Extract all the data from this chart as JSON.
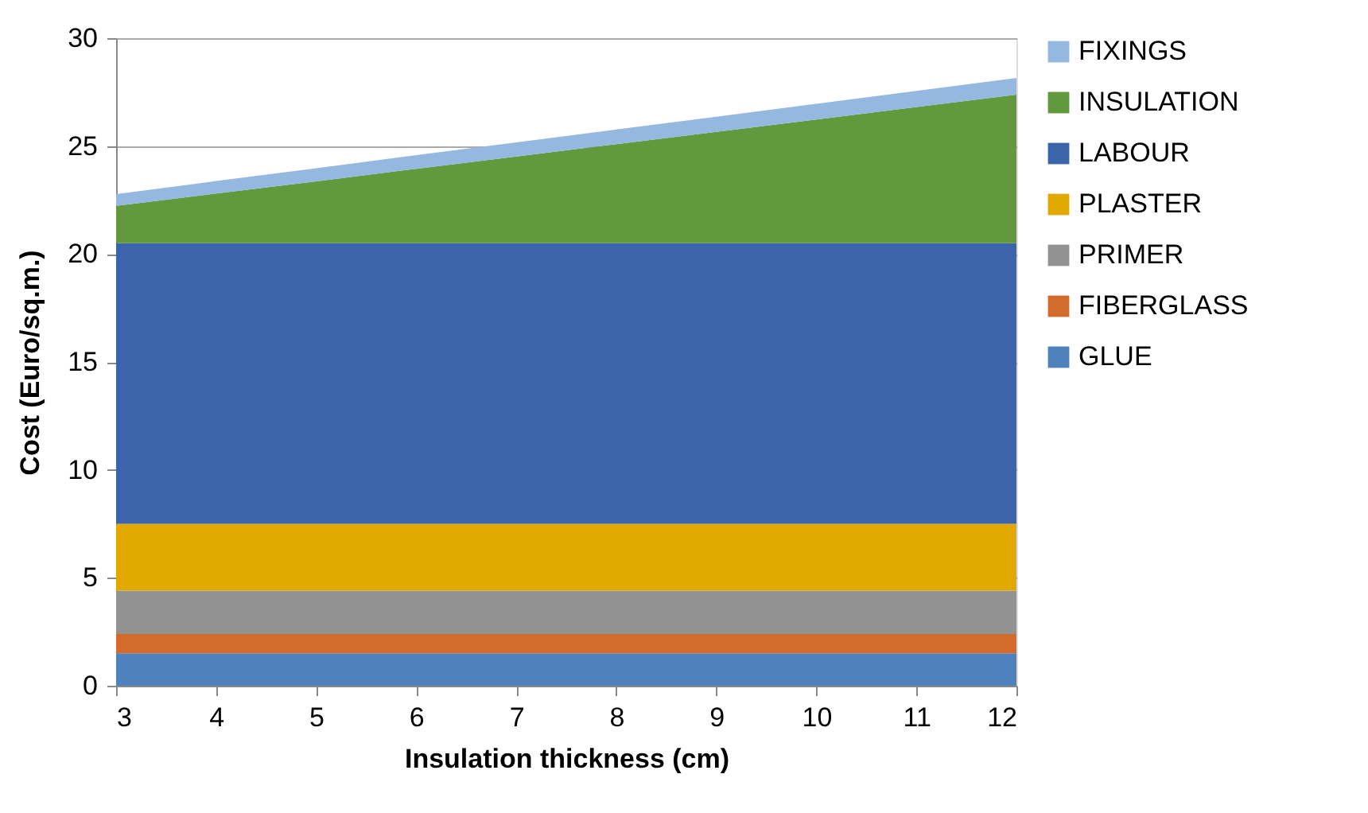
{
  "chart_data": {
    "type": "area",
    "stacked": true,
    "xlabel": "Insulation thickness (cm)",
    "ylabel": "Cost (Euro/sq.m.)",
    "x": [
      3,
      4,
      5,
      6,
      7,
      8,
      9,
      10,
      11,
      12
    ],
    "xlim": [
      3,
      12
    ],
    "xticks": [
      3,
      4,
      5,
      6,
      7,
      8,
      9,
      10,
      11,
      12
    ],
    "ylim": [
      0,
      30
    ],
    "yticks": [
      0,
      5,
      10,
      15,
      20,
      25,
      30
    ],
    "grid": "y",
    "legend": "right",
    "series": [
      {
        "name": "GLUE",
        "color": "#4f81bd",
        "values": [
          1.5,
          1.5,
          1.5,
          1.5,
          1.5,
          1.5,
          1.5,
          1.5,
          1.5,
          1.5
        ]
      },
      {
        "name": "FIBERGLASS",
        "color": "#d26b2b",
        "values": [
          0.9,
          0.9,
          0.9,
          0.9,
          0.9,
          0.9,
          0.9,
          0.9,
          0.9,
          0.9
        ]
      },
      {
        "name": "PRIMER",
        "color": "#929292",
        "values": [
          2.0,
          2.0,
          2.0,
          2.0,
          2.0,
          2.0,
          2.0,
          2.0,
          2.0,
          2.0
        ]
      },
      {
        "name": "PLASTER",
        "color": "#e0a800",
        "values": [
          3.1,
          3.1,
          3.1,
          3.1,
          3.1,
          3.1,
          3.1,
          3.1,
          3.1,
          3.1
        ]
      },
      {
        "name": "LABOUR",
        "color": "#3c64ab",
        "values": [
          13.0,
          13.0,
          13.0,
          13.0,
          13.0,
          13.0,
          13.0,
          13.0,
          13.0,
          13.0
        ]
      },
      {
        "name": "INSULATION",
        "color": "#63993d",
        "values": [
          1.73,
          2.3,
          2.87,
          3.45,
          4.02,
          4.59,
          5.16,
          5.73,
          6.31,
          6.88
        ]
      },
      {
        "name": "FIXINGS",
        "color": "#95b8e0",
        "values": [
          0.55,
          0.58,
          0.6,
          0.63,
          0.65,
          0.68,
          0.7,
          0.73,
          0.75,
          0.78
        ]
      }
    ]
  }
}
